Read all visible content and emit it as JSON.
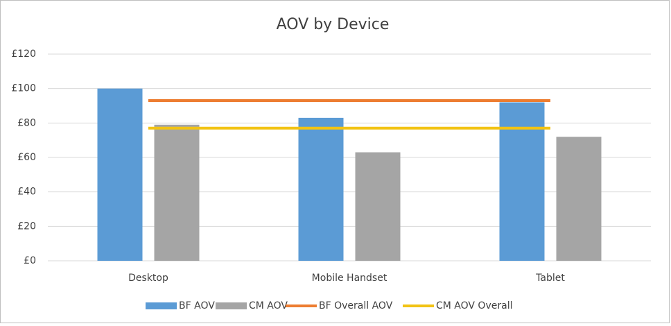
{
  "chart_data": {
    "type": "bar",
    "title": "AOV by Device",
    "categories": [
      "Desktop",
      "Mobile Handset",
      "Tablet"
    ],
    "series": [
      {
        "name": "BF AOV",
        "type": "bar",
        "color": "#5b9bd5",
        "values": [
          100,
          83,
          92
        ]
      },
      {
        "name": "CM AOV",
        "type": "bar",
        "color": "#a5a5a5",
        "values": [
          79,
          63,
          72
        ]
      },
      {
        "name": "BF Overall AOV",
        "type": "line",
        "color": "#ed7d31",
        "values": [
          93,
          93,
          93
        ]
      },
      {
        "name": "CM AOV Overall",
        "type": "line",
        "color": "#f2c314",
        "values": [
          77,
          77,
          77
        ]
      }
    ],
    "ylim": [
      0,
      120
    ],
    "yticks": [
      {
        "value": 0,
        "label": "£0"
      },
      {
        "value": 20,
        "label": "£20"
      },
      {
        "value": 40,
        "label": "£40"
      },
      {
        "value": 60,
        "label": "£60"
      },
      {
        "value": 80,
        "label": "£80"
      },
      {
        "value": 100,
        "label": "£100"
      },
      {
        "value": 120,
        "label": "£120"
      }
    ],
    "grid": true,
    "legend": "bottom"
  }
}
